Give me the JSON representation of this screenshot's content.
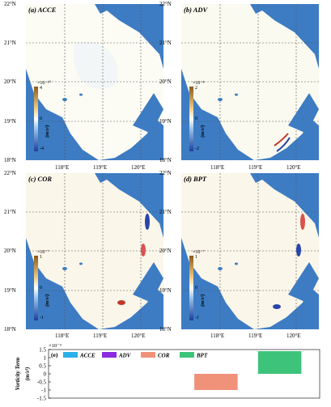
{
  "colors": {
    "land": "#ffffff",
    "sea": "#3d7cc3",
    "gridline": "#555555"
  },
  "panels": [
    {
      "label": "(a) ACCE",
      "cbar_max": "4",
      "cbar_mid": "0",
      "cbar_min": "-4",
      "cbar_scale": "×10⁻¹⁰",
      "cbar_unit": "(m/s²)"
    },
    {
      "label": "(b) ADV",
      "cbar_max": "2",
      "cbar_mid": "0",
      "cbar_min": "-2",
      "cbar_scale": "×10⁻⁸",
      "cbar_unit": "(m/s²)"
    },
    {
      "label": "(c) COR",
      "cbar_max": "1",
      "cbar_mid": "0",
      "cbar_min": "-1",
      "cbar_scale": "×10⁻⁷",
      "cbar_unit": "(m/s²)"
    },
    {
      "label": "(d) BPT",
      "cbar_max": "1",
      "cbar_mid": "0",
      "cbar_min": "-1",
      "cbar_scale": "×10⁻⁷",
      "cbar_unit": "(m/s²)"
    }
  ],
  "lat_ticks": [
    "22°N",
    "21°N",
    "20°N",
    "19°N",
    "18°N"
  ],
  "lon_ticks": [
    "118°E",
    "119°E",
    "120°E"
  ],
  "chart_data": {
    "type": "bar",
    "panel_label": "(e)",
    "categories": [
      "ACCE",
      "ADV",
      "COR",
      "BPT"
    ],
    "values": [
      0,
      0,
      -1.0,
      1.4
    ],
    "colors": [
      "#2bb1e8",
      "#8a2be2",
      "#f0927a",
      "#3ec47a"
    ],
    "scale_label": "×10⁻⁹",
    "ylabel": "Vorticity Term",
    "yunit": "(m/s²)",
    "ylim": [
      -1.5,
      1.5
    ],
    "yticks": [
      "1.5",
      "1",
      "0.5",
      "0",
      "-0.5",
      "-1",
      "-1.5"
    ],
    "ytick_values": [
      1.5,
      1,
      0.5,
      0,
      -0.5,
      -1,
      -1.5
    ],
    "grid": false,
    "legend": "top-left"
  }
}
